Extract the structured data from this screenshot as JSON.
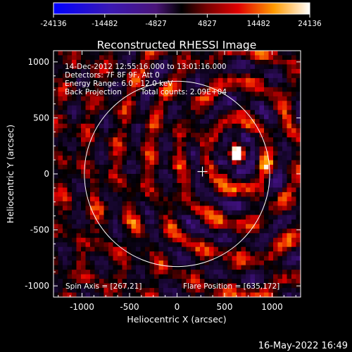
{
  "colorbar": {
    "ticks": [
      "-24136",
      "-14482",
      "-4827",
      "4827",
      "14482",
      "24136"
    ]
  },
  "footer": {
    "timestamp": "16-May-2022 16:49"
  },
  "chart_data": {
    "type": "heatmap",
    "title": "Reconstructed RHESSI Image",
    "xlabel": "Heliocentric X (arcsec)",
    "ylabel": "Heliocentric Y (arcsec)",
    "xlim": [
      -1300,
      1300
    ],
    "ylim": [
      -1100,
      1100
    ],
    "xticks": [
      -1000,
      -500,
      0,
      500,
      1000
    ],
    "yticks": [
      -1000,
      -500,
      0,
      500,
      1000
    ],
    "xticklabels": [
      "-1000",
      "-500",
      "0",
      "500",
      "1000"
    ],
    "yticklabels": [
      "-1000",
      "-500",
      "0",
      "500",
      "1000"
    ],
    "value_range": [
      -24136,
      24136
    ],
    "annotations": {
      "line1": "14-Dec-2012 12:55:16.000 to 13:01:16.000",
      "line2": "Detectors: 7F 8F 9F, Att 0",
      "line3": "Energy Range: 6.0 - 12.0 keV",
      "line4a": "Back Projection",
      "line4b": "Total counts: 2.09E+04",
      "spin_axis": "Spin Axis = [267,21]",
      "flare_position": "Flare Position = [635,172]"
    },
    "spin_axis_xy": [
      267,
      21
    ],
    "flare_position_xy": [
      635,
      172
    ],
    "solar_limb_radius_arcsec": 975
  }
}
